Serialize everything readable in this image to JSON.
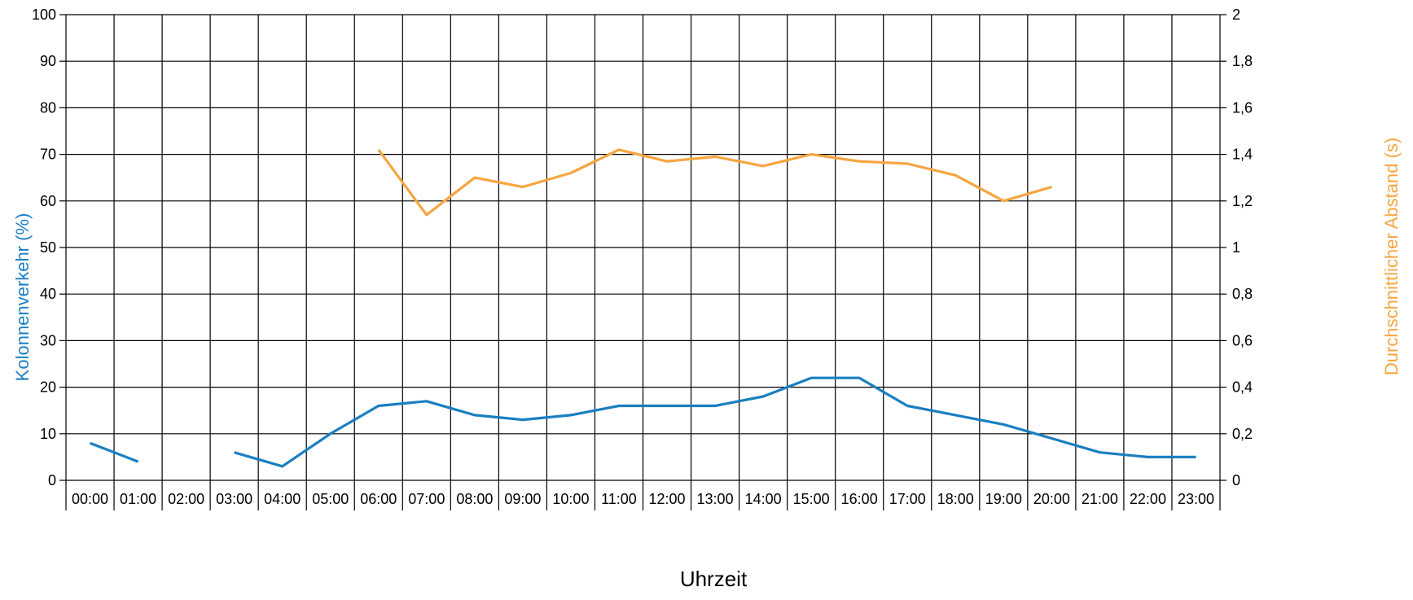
{
  "chart_data": {
    "type": "line",
    "categories": [
      "00:00",
      "01:00",
      "02:00",
      "03:00",
      "04:00",
      "05:00",
      "06:00",
      "07:00",
      "08:00",
      "09:00",
      "10:00",
      "11:00",
      "12:00",
      "13:00",
      "14:00",
      "15:00",
      "16:00",
      "17:00",
      "18:00",
      "19:00",
      "20:00",
      "21:00",
      "22:00",
      "23:00"
    ],
    "xlabel": "Uhrzeit",
    "ylabel_left": "Kolonnenverkehr (%)",
    "ylabel_right": "Durchschnittlicher Abstand (s)",
    "ylim_left": [
      0,
      100
    ],
    "yticks_left": [
      "0",
      "10",
      "20",
      "30",
      "40",
      "50",
      "60",
      "70",
      "80",
      "90",
      "100"
    ],
    "ylim_right": [
      0,
      2
    ],
    "yticks_right": [
      "0",
      "0,2",
      "0,4",
      "0,6",
      "0,8",
      "1",
      "1,2",
      "1,4",
      "1,6",
      "1,8",
      "2"
    ],
    "grid": true,
    "series": [
      {
        "axis": "left",
        "color": "#1a7fc1",
        "values": [
          8,
          4,
          null,
          6,
          3,
          10,
          16,
          17,
          14,
          13,
          14,
          16,
          16,
          16,
          18,
          22,
          22,
          16,
          14,
          12,
          9,
          6,
          5,
          5
        ]
      },
      {
        "axis": "right",
        "color": "#f7a540",
        "values": [
          null,
          null,
          null,
          null,
          null,
          null,
          1.42,
          1.14,
          1.3,
          1.26,
          1.32,
          1.42,
          1.37,
          1.39,
          1.35,
          1.4,
          1.37,
          1.36,
          1.31,
          1.2,
          1.26,
          null,
          null,
          null
        ]
      }
    ]
  }
}
